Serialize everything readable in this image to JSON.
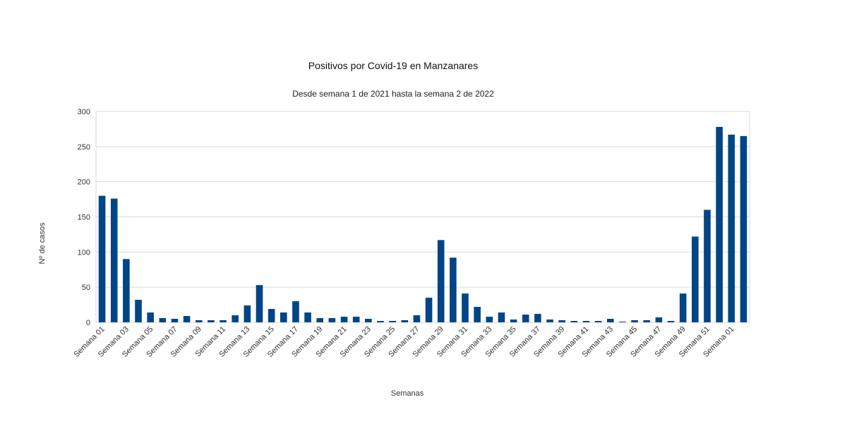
{
  "chart_data": {
    "type": "bar",
    "title": "Positivos por Covid-19 en Manzanares",
    "subtitle": "Desde semana 1 de 2021 hasta la semana 2 de 2022",
    "x_label": "Semanas",
    "y_label": "Nº de casos",
    "categories": [
      "Semana 01",
      null,
      "Semana 03",
      null,
      "Semana 05",
      null,
      "Semana 07",
      null,
      "Semana 09",
      null,
      "Semana 11",
      null,
      "Semana 13",
      null,
      "Semana 15",
      null,
      "Semana 17",
      null,
      "Semana 19",
      null,
      "Semana 21",
      null,
      "Semana 23",
      null,
      "Semana 25",
      null,
      "Semana 27",
      null,
      "Semana 29",
      null,
      "Semana 31",
      null,
      "Semana 33",
      null,
      "Semana 35",
      null,
      "Semana 37",
      null,
      "Semana 39",
      null,
      "Semana 41",
      null,
      "Semana 43",
      null,
      "Semana 45",
      null,
      "Semana 47",
      null,
      "Semana 49",
      null,
      "Semana 51",
      null,
      "Semana 01",
      null
    ],
    "values": [
      180,
      176,
      90,
      32,
      14,
      6,
      5,
      9,
      3,
      3,
      3,
      10,
      24,
      53,
      19,
      14,
      30,
      14,
      6,
      6,
      8,
      8,
      5,
      2,
      2,
      3,
      10,
      35,
      117,
      92,
      41,
      22,
      8,
      14,
      4,
      11,
      12,
      4,
      3,
      2,
      2,
      2,
      5,
      1,
      3,
      3,
      7,
      2,
      41,
      122,
      160,
      278,
      267,
      265
    ],
    "color": "#004586",
    "ylim": [
      0,
      300
    ],
    "yticks": [
      0,
      50,
      100,
      150,
      200,
      250,
      300
    ],
    "grid": true
  }
}
